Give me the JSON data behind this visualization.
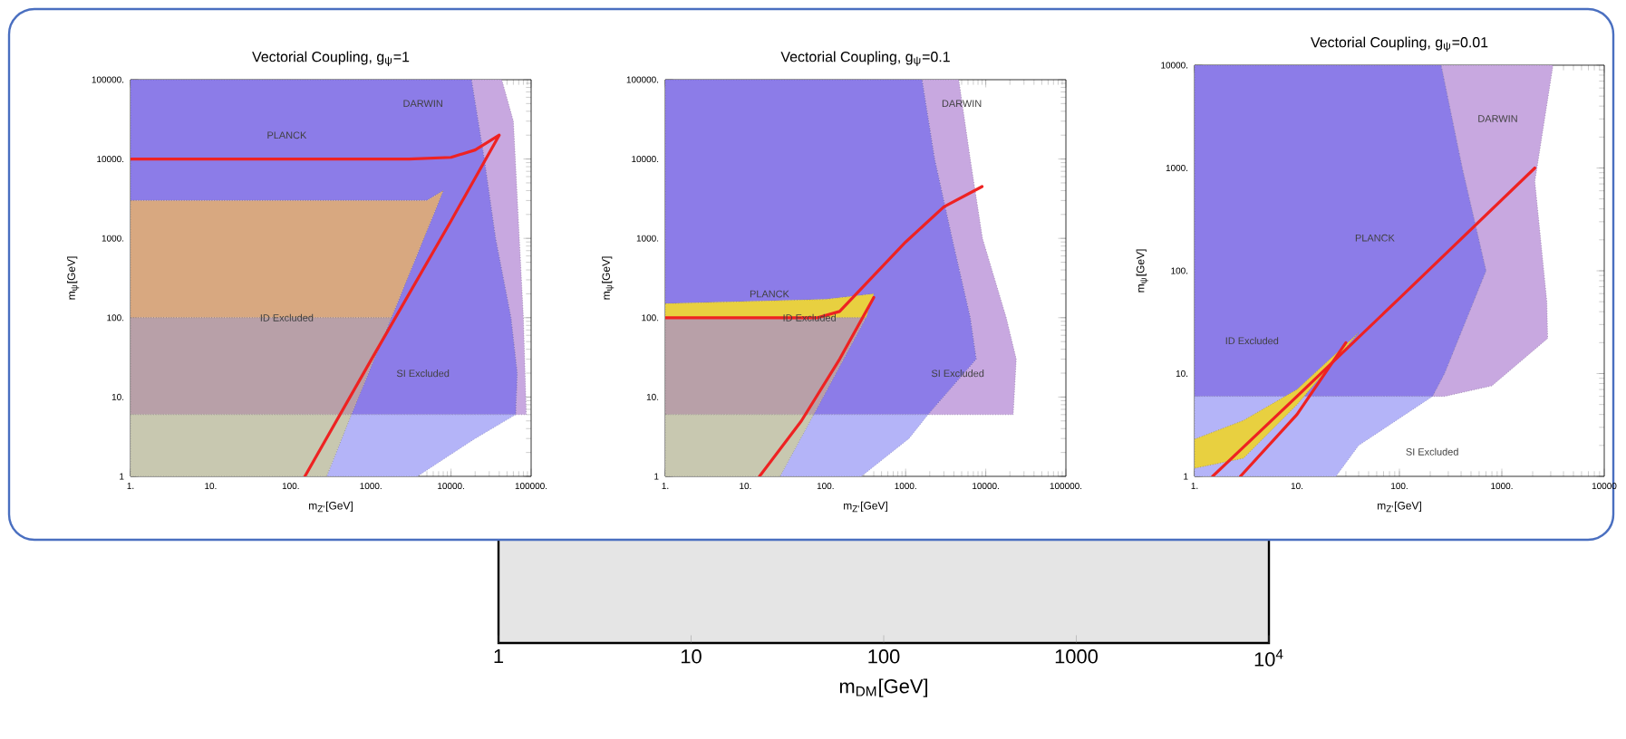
{
  "chart_data": [
    {
      "type": "other",
      "xlabel": "m$_{DM}$[GeV]",
      "categories": [
        "1",
        "10",
        "100",
        "1000",
        "10$^{4}$"
      ]
    },
    {
      "type": "area",
      "title": "Vectorial Coupling, g$_{ψ}$=1",
      "xlabel": "m$_{Z'}$[GeV]",
      "ylabel": "m$_{ψ}$[GeV]",
      "log": "xy",
      "xlim": [
        1,
        100000
      ],
      "ylim": [
        1,
        100000
      ],
      "xticks": [
        {
          "value": 1,
          "label": "1."
        },
        {
          "value": 10,
          "label": "10."
        },
        {
          "value": 100,
          "label": "100."
        },
        {
          "value": 1000,
          "label": "1000."
        },
        {
          "value": 10000,
          "label": "10000."
        },
        {
          "value": 100000,
          "label": "100000."
        }
      ],
      "yticks": [
        1,
        {
          "value": 10,
          "label": "10."
        },
        {
          "value": 100,
          "label": "100."
        },
        {
          "value": 1000,
          "label": "1000."
        },
        {
          "value": 10000,
          "label": "10000."
        },
        {
          "value": 100000,
          "label": "100000."
        }
      ],
      "series": [
        {
          "type": "area",
          "color": "#c8a8e0",
          "x": [
            18000,
            43000,
            60000,
            80000,
            87000,
            64000,
            67000,
            56000,
            36000,
            26000
          ],
          "values": [
            100000,
            100000,
            30000,
            100,
            6,
            6,
            20,
            100,
            1000,
            10000
          ]
        },
        {
          "type": "area",
          "color": "#8c7ce8",
          "x": [
            1,
            18000,
            26000,
            36000,
            56000,
            67000,
            64000,
            570,
            1800,
            8000,
            5000,
            1
          ],
          "values": [
            100000,
            100000,
            10000,
            1000,
            100,
            20,
            6,
            6,
            100,
            4000,
            3000,
            3000
          ]
        },
        {
          "type": "area",
          "color": "#b4b4f8",
          "x": [
            570,
            64000,
            20000,
            3800,
            280
          ],
          "values": [
            6,
            6,
            3,
            1,
            1
          ]
        },
        {
          "type": "area",
          "color": "#d8a880",
          "x": [
            1,
            5000,
            8000,
            1800,
            1
          ],
          "values": [
            3000,
            3000,
            4000,
            100,
            100
          ]
        },
        {
          "type": "area",
          "color": "#b8a0a8",
          "x": [
            1,
            1800,
            570,
            1
          ],
          "values": [
            100,
            100,
            6,
            6
          ]
        },
        {
          "type": "area",
          "color": "#c8c8b0",
          "x": [
            1,
            570,
            280,
            1
          ],
          "values": [
            6,
            6,
            1,
            1
          ]
        },
        {
          "type": "line",
          "color": "#ee2222",
          "x": [
            1,
            3000,
            10000,
            20000,
            40000,
            10000,
            1000,
            150
          ],
          "values": [
            10000,
            10000,
            10500,
            13000,
            20000,
            1660,
            29,
            1
          ]
        }
      ],
      "annotations": [
        "PLANCK",
        "DARWIN",
        "ID Excluded",
        "SI Excluded"
      ]
    },
    {
      "type": "area",
      "title": "Vectorial Coupling, g$_{ψ}$=0.1",
      "xlabel": "m$_{Z'}$[GeV]",
      "ylabel": "m$_{ψ}$[GeV]",
      "log": "xy",
      "xlim": [
        1,
        100000
      ],
      "ylim": [
        1,
        100000
      ],
      "xticks": [
        {
          "value": 1,
          "label": "1."
        },
        {
          "value": 10,
          "label": "10."
        },
        {
          "value": 100,
          "label": "100."
        },
        {
          "value": 1000,
          "label": "1000."
        },
        {
          "value": 10000,
          "label": "10000."
        },
        {
          "value": 100000,
          "label": "100000."
        }
      ],
      "yticks": [
        1,
        {
          "value": 10,
          "label": "10."
        },
        {
          "value": 100,
          "label": "100."
        },
        {
          "value": 1000,
          "label": "1000."
        },
        {
          "value": 10000,
          "label": "10000."
        },
        {
          "value": 100000,
          "label": "100000."
        }
      ],
      "series": [
        {
          "type": "area",
          "color": "#c8a8e0",
          "x": [
            4600,
            6400,
            9100,
            18000,
            24000,
            22000,
            1900,
            7600,
            6400,
            3800,
            2300,
            1600
          ],
          "values": [
            100000,
            10000,
            1000,
            100,
            30,
            6,
            6,
            30,
            100,
            1000,
            10000,
            100000
          ]
        },
        {
          "type": "area",
          "color": "#8c7ce8",
          "x": [
            1,
            1600,
            2300,
            3800,
            6400,
            7600,
            1900,
            71,
            320,
            400,
            100,
            1
          ],
          "values": [
            100000,
            100000,
            10000,
            1000,
            100,
            30,
            6,
            6,
            100,
            200,
            170,
            150
          ]
        },
        {
          "type": "area",
          "color": "#b4b4f8",
          "x": [
            71,
            1900,
            1100,
            280,
            27
          ],
          "values": [
            6,
            6,
            3,
            1,
            1
          ]
        },
        {
          "type": "area",
          "color": "#e8d040",
          "x": [
            1,
            100,
            400,
            320,
            1
          ],
          "values": [
            150,
            170,
            200,
            100,
            100
          ]
        },
        {
          "type": "area",
          "color": "#b8a0a8",
          "x": [
            1,
            320,
            71,
            1
          ],
          "values": [
            100,
            100,
            6,
            6
          ]
        },
        {
          "type": "area",
          "color": "#c8c8b0",
          "x": [
            1,
            71,
            27,
            1
          ],
          "values": [
            6,
            6,
            1,
            1
          ]
        },
        {
          "type": "line",
          "color": "#ee2222",
          "x": [
            1,
            80,
            150,
            300,
            1000,
            3000,
            9000
          ],
          "values": [
            100,
            100,
            120,
            250,
            900,
            2500,
            4500
          ]
        },
        {
          "type": "line",
          "color": "#ee2222",
          "x": [
            15,
            50,
            150,
            400
          ],
          "values": [
            1,
            5,
            30,
            180
          ]
        }
      ],
      "annotations": [
        "PLANCK",
        "DARWIN",
        "ID Excluded",
        "SI Excluded"
      ]
    },
    {
      "type": "area",
      "title": "Vectorial Coupling, g$_{ψ}$=0.01",
      "xlabel": "m$_{Z'}$[GeV]",
      "ylabel": "m$_{ψ}$[GeV]",
      "log": "xy",
      "xlim": [
        1,
        10000
      ],
      "ylim": [
        1,
        10000
      ],
      "xticks": [
        {
          "value": 1,
          "label": "1."
        },
        {
          "value": 10,
          "label": "10."
        },
        {
          "value": 100,
          "label": "100."
        },
        {
          "value": 1000,
          "label": "1000."
        },
        10000
      ],
      "yticks": [
        1,
        {
          "value": 10,
          "label": "10."
        },
        {
          "value": 100,
          "label": "100."
        },
        {
          "value": 1000,
          "label": "1000."
        },
        {
          "value": 10000,
          "label": "10000."
        }
      ],
      "series": [
        {
          "type": "area",
          "color": "#c8a8e0",
          "x": [
            3160,
            2100,
            2750,
            2800,
            800,
            275,
            210,
            275,
            700,
            410,
            255
          ],
          "values": [
            10000,
            740,
            50,
            22,
            7.6,
            6,
            6,
            10,
            100,
            1000,
            10000
          ]
        },
        {
          "type": "area",
          "color": "#8c7ce8",
          "x": [
            1,
            255,
            410,
            700,
            275,
            210,
            1
          ],
          "values": [
            10000,
            10000,
            1000,
            100,
            10,
            6,
            6
          ]
        },
        {
          "type": "area",
          "color": "#b4b4f8",
          "x": [
            1,
            210,
            40,
            24,
            1
          ],
          "values": [
            6,
            6,
            2,
            1,
            1
          ]
        },
        {
          "type": "area",
          "color": "#e8d040",
          "x": [
            1,
            3,
            10,
            40,
            10,
            3,
            1
          ],
          "values": [
            2.3,
            3.5,
            7,
            25,
            5,
            1.5,
            1.2
          ]
        },
        {
          "type": "line",
          "color": "#ee2222",
          "x": [
            1.5,
            10,
            100,
            2100
          ],
          "values": [
            1,
            6,
            54,
            1000
          ]
        },
        {
          "type": "line",
          "color": "#ee2222",
          "x": [
            2.8,
            10,
            30
          ],
          "values": [
            1,
            4,
            20
          ]
        }
      ],
      "annotations": [
        "PLANCK",
        "DARWIN",
        "ID Excluded",
        "SI Excluded"
      ]
    }
  ]
}
